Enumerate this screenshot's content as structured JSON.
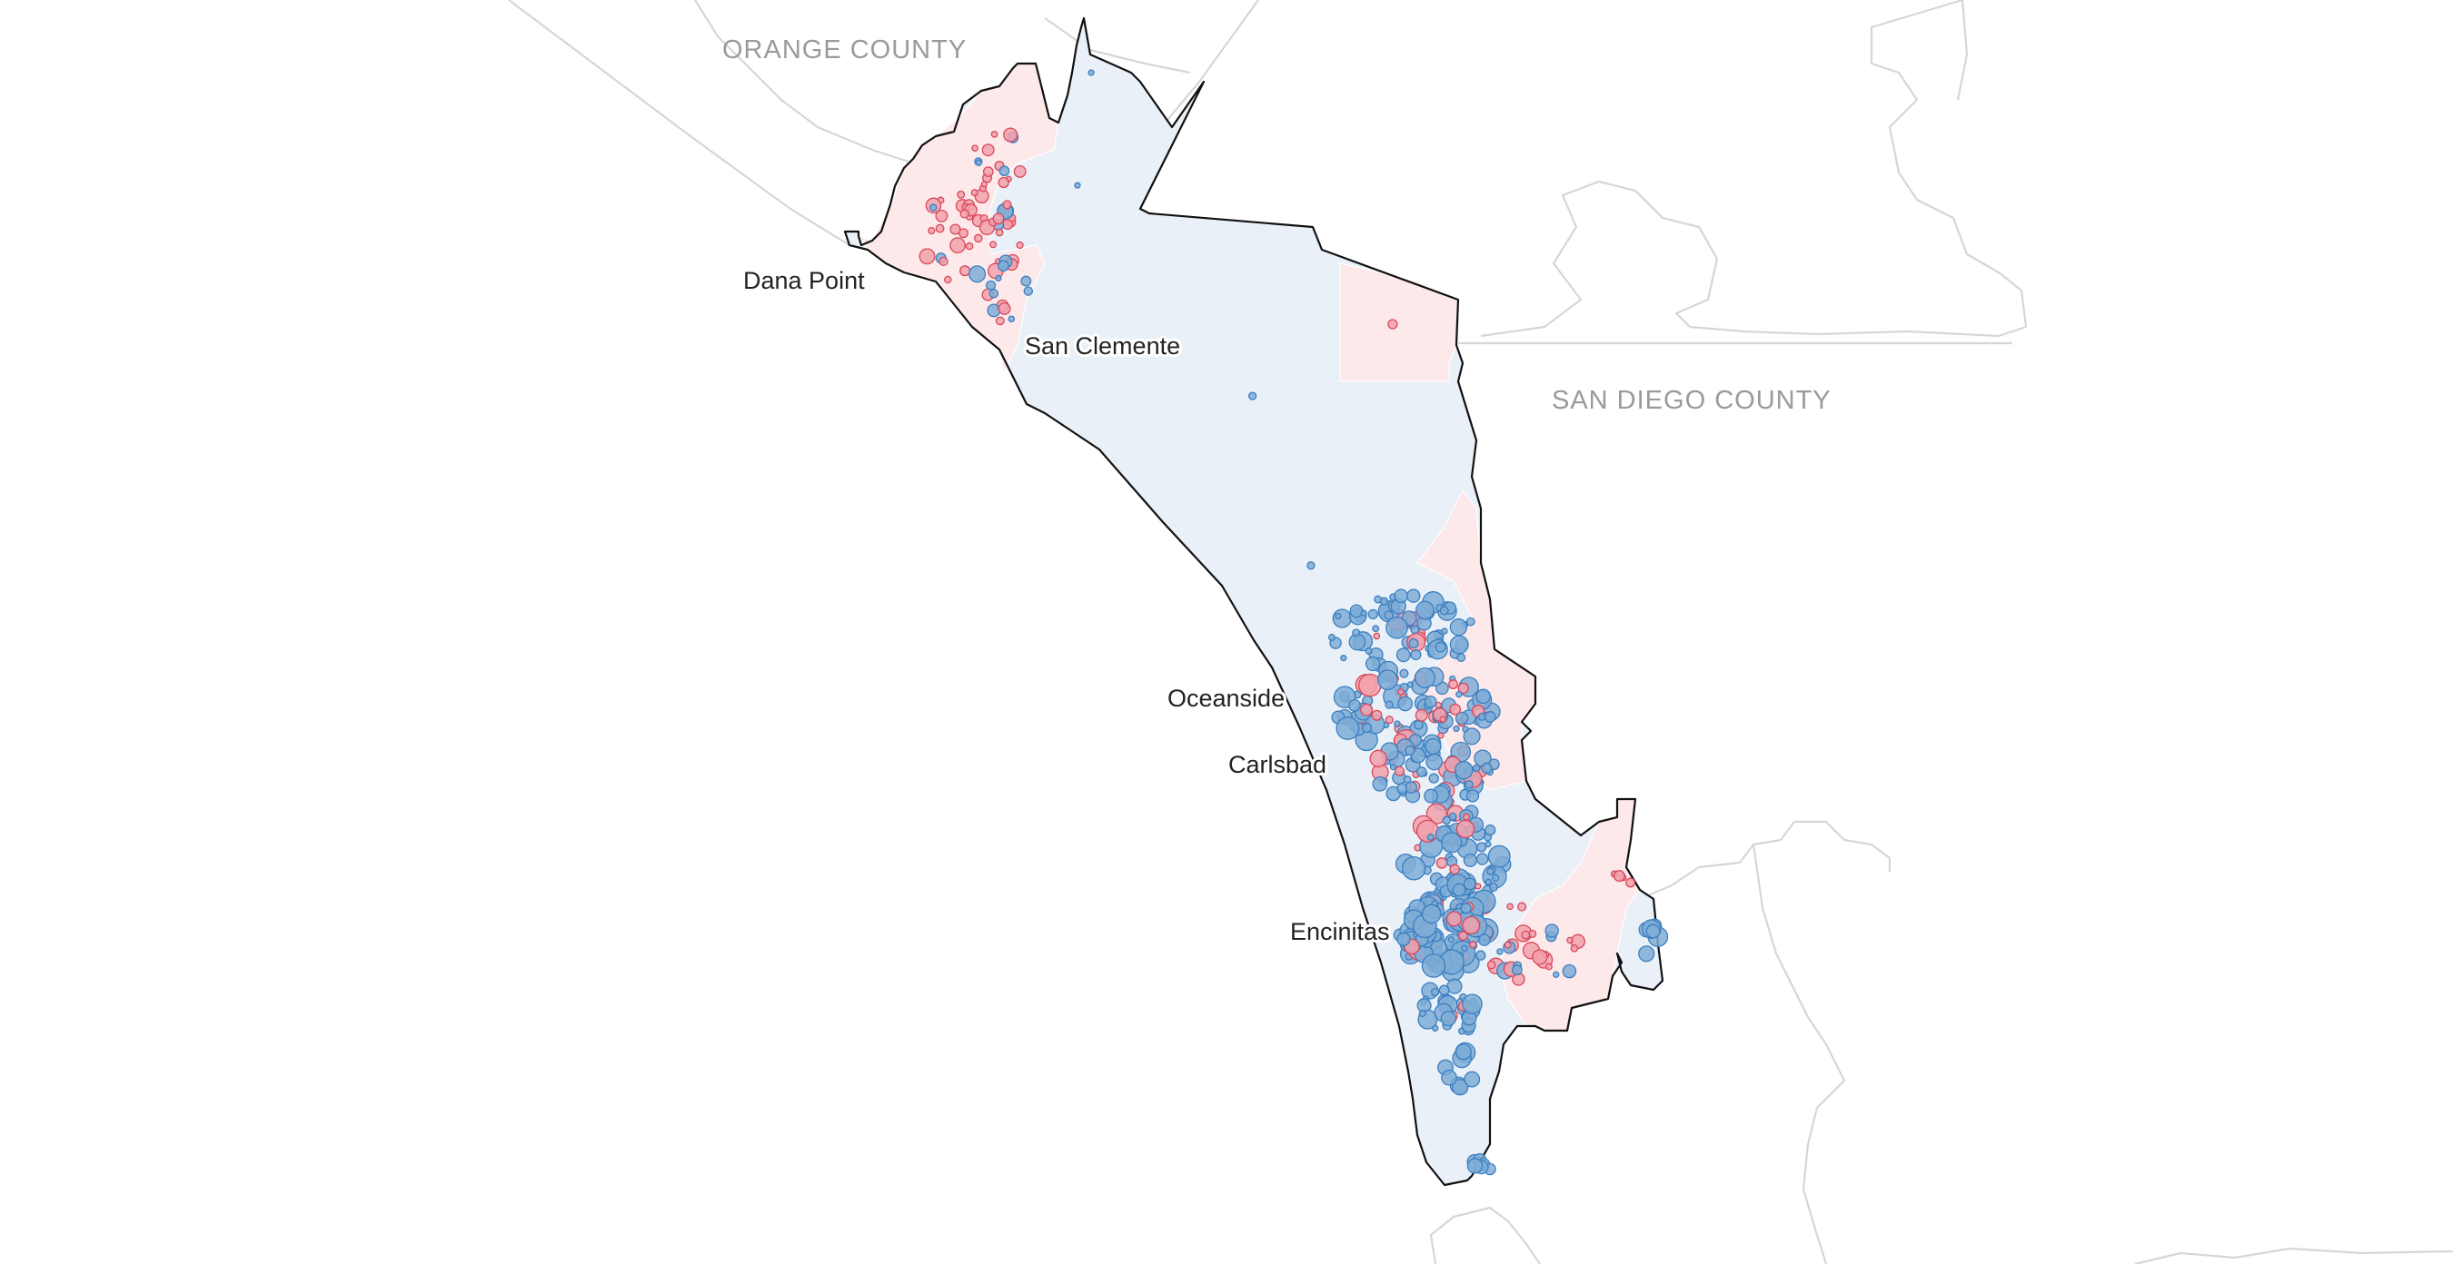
{
  "map": {
    "counties": [
      "ORANGE COUNTY",
      "SAN DIEGO COUNTY"
    ],
    "cities": [
      "Dana Point",
      "San Clemente",
      "Oceanside",
      "Carlsbad",
      "Encinitas"
    ],
    "colors": {
      "blue_area": "#e9f0f7",
      "red_area": "#fde8ea",
      "blue_dot_fill": "#7fadd6",
      "blue_dot_stroke": "#3b7fc0",
      "red_dot_fill": "#f2a1ab",
      "red_dot_stroke": "#d9485a",
      "county_line": "#d6d6d6",
      "district_outline": "#111111"
    }
  }
}
